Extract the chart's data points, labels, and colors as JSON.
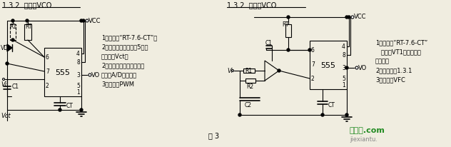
{
  "title_left": "1.3.2  单稳型VCO",
  "title_right": "1.3.2  单稳型VCO",
  "fig3_label": "图 3",
  "bg_color": "#f0ede0",
  "line_color": "#000000",
  "text_color": "#000000",
  "left_annotations": [
    "1）特点：“RT-7.6-CT”，",
    "2端输入被调制脉冲，5端加",
    "调制信号Vct。",
    "2）用途：脉宽调制、压频",
    "变化、A/D变换等。",
    "3）别名：PWM"
  ],
  "right_annotations": [
    "1）特点：“RT-7.6-CT”",
    "   输入带VT1，运放等辅",
    "助器件。",
    "2）用途：同1.3.1",
    "3）别名：VFC"
  ],
  "watermark_cn": "接线图.com",
  "watermark_en": "jiexiantu."
}
